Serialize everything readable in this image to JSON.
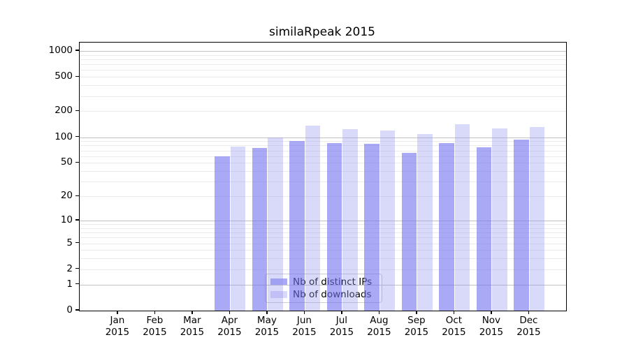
{
  "title": "similaRpeak 2015",
  "legend": {
    "items": [
      {
        "label": "Nb of distinct IPs"
      },
      {
        "label": "Nb of downloads"
      }
    ]
  },
  "chart_data": {
    "type": "bar",
    "title": "similaRpeak 2015",
    "categories": [
      {
        "month": "Jan",
        "year": "2015"
      },
      {
        "month": "Feb",
        "year": "2015"
      },
      {
        "month": "Mar",
        "year": "2015"
      },
      {
        "month": "Apr",
        "year": "2015"
      },
      {
        "month": "May",
        "year": "2015"
      },
      {
        "month": "Jun",
        "year": "2015"
      },
      {
        "month": "Jul",
        "year": "2015"
      },
      {
        "month": "Aug",
        "year": "2015"
      },
      {
        "month": "Sep",
        "year": "2015"
      },
      {
        "month": "Oct",
        "year": "2015"
      },
      {
        "month": "Nov",
        "year": "2015"
      },
      {
        "month": "Dec",
        "year": "2015"
      }
    ],
    "series": [
      {
        "key": "distinct-ips",
        "name": "Nb of distinct IPs",
        "color": "#7070f0",
        "alpha": 0.6,
        "composite_color": "#a9a9f6",
        "values": [
          null,
          null,
          null,
          60,
          75,
          91,
          86,
          84,
          66,
          86,
          76,
          93
        ]
      },
      {
        "key": "downloads",
        "name": "Nb of downloads",
        "color": "#9292f1",
        "alpha": 0.35,
        "composite_color": "#d9d9fa",
        "values": [
          null,
          null,
          null,
          78,
          100,
          137,
          125,
          119,
          108,
          141,
          127,
          132
        ]
      }
    ],
    "y_scale": "log10(value+1)",
    "y_ticks": [
      0,
      1,
      2,
      5,
      10,
      20,
      50,
      100,
      200,
      500,
      1000
    ],
    "ylim": [
      0,
      1250
    ],
    "xlabel": "",
    "ylabel": "",
    "grid": true,
    "grid_major_color": "#c2c2c2",
    "grid_minor_color": "#ebebeb",
    "legend_position": "lower-center-inside"
  }
}
